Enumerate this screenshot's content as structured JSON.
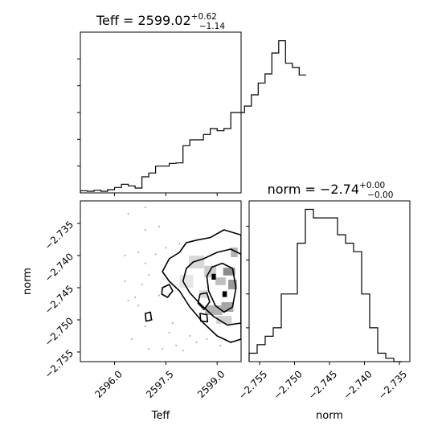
{
  "chart_data": [
    {
      "type": "histogram",
      "panel": "top-left",
      "title": {
        "prefix": "Teff = 2599.02",
        "sup": "+0.62",
        "sub": "−1.14"
      },
      "xlim": [
        2595.0,
        2599.7
      ],
      "bin_edges_start": 2595.0,
      "bin_width": 0.2,
      "counts": [
        0.4,
        0.3,
        0.5,
        0.3,
        0.6,
        1.0,
        1.6,
        1.3,
        0.9,
        3.0,
        3.7,
        5.0,
        5.0,
        5.5,
        5.6,
        8.8,
        9.9,
        9.9,
        10.9,
        12.0,
        11.6,
        12.0,
        15.0,
        15.0,
        16.2,
        18.3,
        20.5,
        22.2,
        26.1,
        28.4,
        24.2,
        23.4,
        22.0
      ],
      "ylim": [
        0,
        30
      ],
      "xlabel": "",
      "ylabel": ""
    },
    {
      "type": "histogram",
      "panel": "bottom-right",
      "title": {
        "prefix": "norm = −2.74",
        "sup": "+0.00",
        "sub": "−0.00"
      },
      "xlim": [
        -2.7565,
        -2.7335
      ],
      "bin_edges_start": -2.7565,
      "bin_width": 0.00115,
      "counts": [
        1,
        2,
        3,
        4,
        8,
        8,
        14,
        18,
        17,
        17,
        17,
        15,
        14,
        13,
        8,
        4,
        1,
        0.4,
        0
      ],
      "ylim": [
        0,
        19
      ],
      "xticks": [
        -2.755,
        -2.75,
        -2.745,
        -2.74,
        -2.735
      ],
      "xtick_labels": [
        "−2.755",
        "−2.750",
        "−2.745",
        "−2.740",
        "−2.735"
      ],
      "xlabel": "norm",
      "ylabel": ""
    },
    {
      "type": "scatter",
      "panel": "bottom-left",
      "title": "",
      "xlim": [
        2595.0,
        2599.7
      ],
      "ylim": [
        -2.7565,
        -2.7315
      ],
      "xticks": [
        2596.0,
        2597.5,
        2599.0
      ],
      "xtick_labels": [
        "2596.0",
        "2597.5",
        "2599.0"
      ],
      "yticks": [
        -2.755,
        -2.75,
        -2.745,
        -2.74,
        -2.735
      ],
      "ytick_labels": [
        "−2.755",
        "−2.750",
        "−2.745",
        "−2.740",
        "−2.735"
      ],
      "xlabel": "Teff",
      "ylabel": "norm",
      "density": [
        {
          "x": 2599.35,
          "y": -2.7425,
          "w": 0.35,
          "h": 0.0012,
          "shade": 0.55
        },
        {
          "x": 2599.45,
          "y": -2.7445,
          "w": 0.25,
          "h": 0.0015,
          "shade": 0.6
        },
        {
          "x": 2599.1,
          "y": -2.744,
          "w": 0.3,
          "h": 0.0012,
          "shade": 0.75
        },
        {
          "x": 2598.8,
          "y": -2.7425,
          "w": 0.35,
          "h": 0.0018,
          "shade": 0.8
        },
        {
          "x": 2598.4,
          "y": -2.741,
          "w": 0.45,
          "h": 0.002,
          "shade": 0.85
        },
        {
          "x": 2598.1,
          "y": -2.744,
          "w": 0.4,
          "h": 0.002,
          "shade": 0.9
        },
        {
          "x": 2598.9,
          "y": -2.7485,
          "w": 0.5,
          "h": 0.0015,
          "shade": 0.7
        },
        {
          "x": 2599.3,
          "y": -2.748,
          "w": 0.35,
          "h": 0.0015,
          "shade": 0.65
        },
        {
          "x": 2599.2,
          "y": -2.75,
          "w": 0.45,
          "h": 0.0012,
          "shade": 0.82
        },
        {
          "x": 2599.5,
          "y": -2.7395,
          "w": 0.2,
          "h": 0.0015,
          "shade": 0.7
        },
        {
          "x": 2598.6,
          "y": -2.746,
          "w": 0.25,
          "h": 0.0012,
          "shade": 0.85
        }
      ],
      "peaks": [
        {
          "x": 2599.22,
          "y": -2.746,
          "w": 0.13,
          "h": 0.0009
        },
        {
          "x": 2598.9,
          "y": -2.7433,
          "w": 0.12,
          "h": 0.0009
        }
      ],
      "points": [
        [
          2596.9,
          -2.7412
        ],
        [
          2597.0,
          -2.743
        ],
        [
          2596.8,
          -2.7445
        ],
        [
          2597.2,
          -2.7398
        ],
        [
          2597.3,
          -2.7462
        ],
        [
          2596.7,
          -2.7478
        ],
        [
          2597.5,
          -2.7388
        ],
        [
          2597.1,
          -2.75
        ],
        [
          2596.5,
          -2.753
        ],
        [
          2597.6,
          -2.752
        ],
        [
          2597.8,
          -2.754
        ],
        [
          2597.9,
          -2.7382
        ],
        [
          2596.9,
          -2.736
        ],
        [
          2597.4,
          -2.7545
        ],
        [
          2598.0,
          -2.7548
        ],
        [
          2598.4,
          -2.7535
        ],
        [
          2598.2,
          -2.7525
        ],
        [
          2596.6,
          -2.7465
        ],
        [
          2596.4,
          -2.747
        ],
        [
          2597.0,
          -2.7545
        ],
        [
          2596.9,
          -2.751
        ],
        [
          2596.3,
          -2.74
        ],
        [
          2596.3,
          -2.744
        ],
        [
          2597.3,
          -2.7355
        ],
        [
          2598.7,
          -2.753
        ],
        [
          2599.1,
          -2.754
        ],
        [
          2596.4,
          -2.7335
        ],
        [
          2597.6,
          -2.746
        ],
        [
          2597.7,
          -2.7505
        ],
        [
          2596.7,
          -2.7395
        ],
        [
          2596.9,
          -2.7325
        ],
        [
          2599.4,
          -2.7535
        ]
      ],
      "contours": [
        [
          [
            2598.8,
            -2.7372
          ],
          [
            2599.2,
            -2.736
          ],
          [
            2599.7,
            -2.7368
          ],
          [
            2599.7,
            -2.753
          ],
          [
            2599.4,
            -2.7535
          ],
          [
            2599.0,
            -2.7525
          ],
          [
            2598.6,
            -2.7505
          ],
          [
            2598.2,
            -2.748
          ],
          [
            2597.9,
            -2.7455
          ],
          [
            2597.6,
            -2.744
          ],
          [
            2597.4,
            -2.7425
          ],
          [
            2597.6,
            -2.7405
          ],
          [
            2597.9,
            -2.7395
          ],
          [
            2598.1,
            -2.738
          ],
          [
            2598.4,
            -2.7376
          ]
        ],
        [
          [
            2598.6,
            -2.7405
          ],
          [
            2599.0,
            -2.7395
          ],
          [
            2599.4,
            -2.739
          ],
          [
            2599.7,
            -2.7398
          ],
          [
            2599.7,
            -2.7505
          ],
          [
            2599.3,
            -2.7508
          ],
          [
            2598.9,
            -2.7495
          ],
          [
            2598.5,
            -2.7475
          ],
          [
            2598.2,
            -2.7458
          ],
          [
            2598.0,
            -2.744
          ],
          [
            2598.1,
            -2.742
          ],
          [
            2598.3,
            -2.741
          ]
        ],
        [
          [
            2598.85,
            -2.7418
          ],
          [
            2599.15,
            -2.7412
          ],
          [
            2599.45,
            -2.742
          ],
          [
            2599.55,
            -2.745
          ],
          [
            2599.45,
            -2.748
          ],
          [
            2599.2,
            -2.7488
          ],
          [
            2598.95,
            -2.7478
          ],
          [
            2598.75,
            -2.7455
          ],
          [
            2598.7,
            -2.7432
          ]
        ],
        [
          [
            2598.5,
            -2.746
          ],
          [
            2598.7,
            -2.7458
          ],
          [
            2598.78,
            -2.7472
          ],
          [
            2598.62,
            -2.7484
          ],
          [
            2598.44,
            -2.7474
          ]
        ],
        [
          [
            2597.4,
            -2.745
          ],
          [
            2597.6,
            -2.7445
          ],
          [
            2597.7,
            -2.7455
          ],
          [
            2597.55,
            -2.7465
          ],
          [
            2597.38,
            -2.746
          ]
        ],
        [
          [
            2596.9,
            -2.749
          ],
          [
            2597.05,
            -2.7488
          ],
          [
            2597.08,
            -2.75
          ],
          [
            2596.92,
            -2.7502
          ]
        ],
        [
          [
            2598.5,
            -2.749
          ],
          [
            2598.7,
            -2.7492
          ],
          [
            2598.72,
            -2.7503
          ],
          [
            2598.52,
            -2.7502
          ]
        ]
      ]
    }
  ]
}
